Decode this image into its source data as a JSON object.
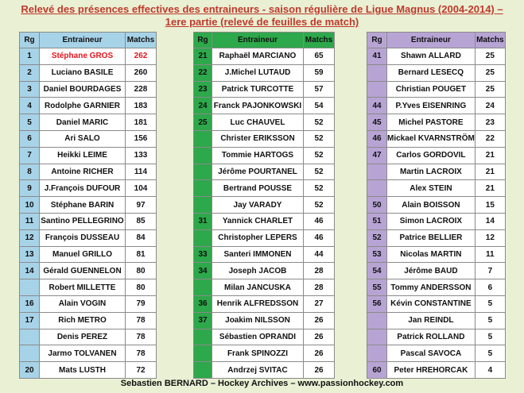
{
  "title_line1": "Relevé des présences effectives des entraineurs - saison régulière de  Ligue Magnus (2004-2014)  –",
  "title_line2": "1ere partie (relevé de feuilles de match)",
  "headers": {
    "rank": "Rg",
    "coach": "Entraineur",
    "matches": "Matchs"
  },
  "highlight_color": "#e0141e",
  "colors": {
    "table1": "#a7d3e8",
    "table2": "#2da84a",
    "table3": "#b7a4d4",
    "background": "#e9f0d4",
    "title": "#c0392b"
  },
  "tables": [
    {
      "rows": [
        {
          "rank": "1",
          "name": "Stéphane GROS",
          "matches": "262",
          "highlight": true
        },
        {
          "rank": "2",
          "name": "Luciano BASILE",
          "matches": "260"
        },
        {
          "rank": "3",
          "name": "Daniel BOURDAGES",
          "matches": "228"
        },
        {
          "rank": "4",
          "name": "Rodolphe GARNIER",
          "matches": "183"
        },
        {
          "rank": "5",
          "name": "Daniel MARIC",
          "matches": "181"
        },
        {
          "rank": "6",
          "name": "Ari SALO",
          "matches": "156"
        },
        {
          "rank": "7",
          "name": "Heikki LEIME",
          "matches": "133"
        },
        {
          "rank": "8",
          "name": "Antoine RICHER",
          "matches": "114"
        },
        {
          "rank": "9",
          "name": "J.François DUFOUR",
          "matches": "104"
        },
        {
          "rank": "10",
          "name": "Stéphane BARIN",
          "matches": "97"
        },
        {
          "rank": "11",
          "name": "Santino PELLEGRINO",
          "matches": "85"
        },
        {
          "rank": "12",
          "name": "François DUSSEAU",
          "matches": "84"
        },
        {
          "rank": "13",
          "name": "Manuel GRILLO",
          "matches": "81"
        },
        {
          "rank": "14",
          "name": "Gérald GUENNELON",
          "matches": "80"
        },
        {
          "rank": "",
          "name": "Robert MILLETTE",
          "matches": "80"
        },
        {
          "rank": "16",
          "name": "Alain VOGIN",
          "matches": "79"
        },
        {
          "rank": "17",
          "name": "Rich METRO",
          "matches": "78"
        },
        {
          "rank": "",
          "name": "Denis PEREZ",
          "matches": "78"
        },
        {
          "rank": "",
          "name": "Jarmo TOLVANEN",
          "matches": "78"
        },
        {
          "rank": "20",
          "name": "Mats LUSTH",
          "matches": "72"
        }
      ]
    },
    {
      "rows": [
        {
          "rank": "21",
          "name": "Raphaël MARCIANO",
          "matches": "65"
        },
        {
          "rank": "22",
          "name": "J.Michel LUTAUD",
          "matches": "59"
        },
        {
          "rank": "23",
          "name": "Patrick TURCOTTE",
          "matches": "57"
        },
        {
          "rank": "24",
          "name": "Franck PAJONKOWSKI",
          "matches": "54"
        },
        {
          "rank": "25",
          "name": "Luc CHAUVEL",
          "matches": "52"
        },
        {
          "rank": "",
          "name": "Christer ERIKSSON",
          "matches": "52"
        },
        {
          "rank": "",
          "name": "Tommie HARTOGS",
          "matches": "52"
        },
        {
          "rank": "",
          "name": "Jérôme POURTANEL",
          "matches": "52"
        },
        {
          "rank": "",
          "name": "Bertrand POUSSE",
          "matches": "52"
        },
        {
          "rank": "",
          "name": "Jay VARADY",
          "matches": "52"
        },
        {
          "rank": "31",
          "name": "Yannick CHARLET",
          "matches": "46"
        },
        {
          "rank": "",
          "name": "Christopher LEPERS",
          "matches": "46"
        },
        {
          "rank": "33",
          "name": "Santeri IMMONEN",
          "matches": "44"
        },
        {
          "rank": "34",
          "name": "Joseph JACOB",
          "matches": "28"
        },
        {
          "rank": "",
          "name": "Milan JANCUSKA",
          "matches": "28"
        },
        {
          "rank": "36",
          "name": "Henrik ALFREDSSON",
          "matches": "27"
        },
        {
          "rank": "37",
          "name": "Joakim NILSSON",
          "matches": "26"
        },
        {
          "rank": "",
          "name": "Sébastien OPRANDI",
          "matches": "26"
        },
        {
          "rank": "",
          "name": "Frank SPINOZZI",
          "matches": "26"
        },
        {
          "rank": "",
          "name": "Andrzej SVITAC",
          "matches": "26"
        }
      ]
    },
    {
      "rows": [
        {
          "rank": "41",
          "name": "Shawn ALLARD",
          "matches": "25"
        },
        {
          "rank": "",
          "name": "Bernard LESECQ",
          "matches": "25"
        },
        {
          "rank": "",
          "name": "Christian POUGET",
          "matches": "25"
        },
        {
          "rank": "44",
          "name": "P.Yves EISENRING",
          "matches": "24"
        },
        {
          "rank": "45",
          "name": "Michel PASTORE",
          "matches": "23"
        },
        {
          "rank": "46",
          "name": "Mickael KVARNSTRÖM",
          "matches": "22"
        },
        {
          "rank": "47",
          "name": "Carlos GORDOVIL",
          "matches": "21"
        },
        {
          "rank": "",
          "name": "Martin LACROIX",
          "matches": "21"
        },
        {
          "rank": "",
          "name": "Alex STEIN",
          "matches": "21"
        },
        {
          "rank": "50",
          "name": "Alain BOISSON",
          "matches": "15"
        },
        {
          "rank": "51",
          "name": "Simon LACROIX",
          "matches": "14"
        },
        {
          "rank": "52",
          "name": "Patrice BELLIER",
          "matches": "12"
        },
        {
          "rank": "53",
          "name": "Nicolas MARTIN",
          "matches": "11"
        },
        {
          "rank": "54",
          "name": "Jérôme BAUD",
          "matches": "7"
        },
        {
          "rank": "55",
          "name": "Tommy ANDERSSON",
          "matches": "6"
        },
        {
          "rank": "56",
          "name": "Kévin CONSTANTINE",
          "matches": "5"
        },
        {
          "rank": "",
          "name": "Jan REINDL",
          "matches": "5"
        },
        {
          "rank": "",
          "name": "Patrick ROLLAND",
          "matches": "5"
        },
        {
          "rank": "",
          "name": "Pascal SAVOCA",
          "matches": "5"
        },
        {
          "rank": "60",
          "name": "Peter HREHORCAK",
          "matches": "4"
        }
      ]
    }
  ],
  "footer": "Sebastien BERNARD – Hockey Archives – www.passionhockey.com"
}
